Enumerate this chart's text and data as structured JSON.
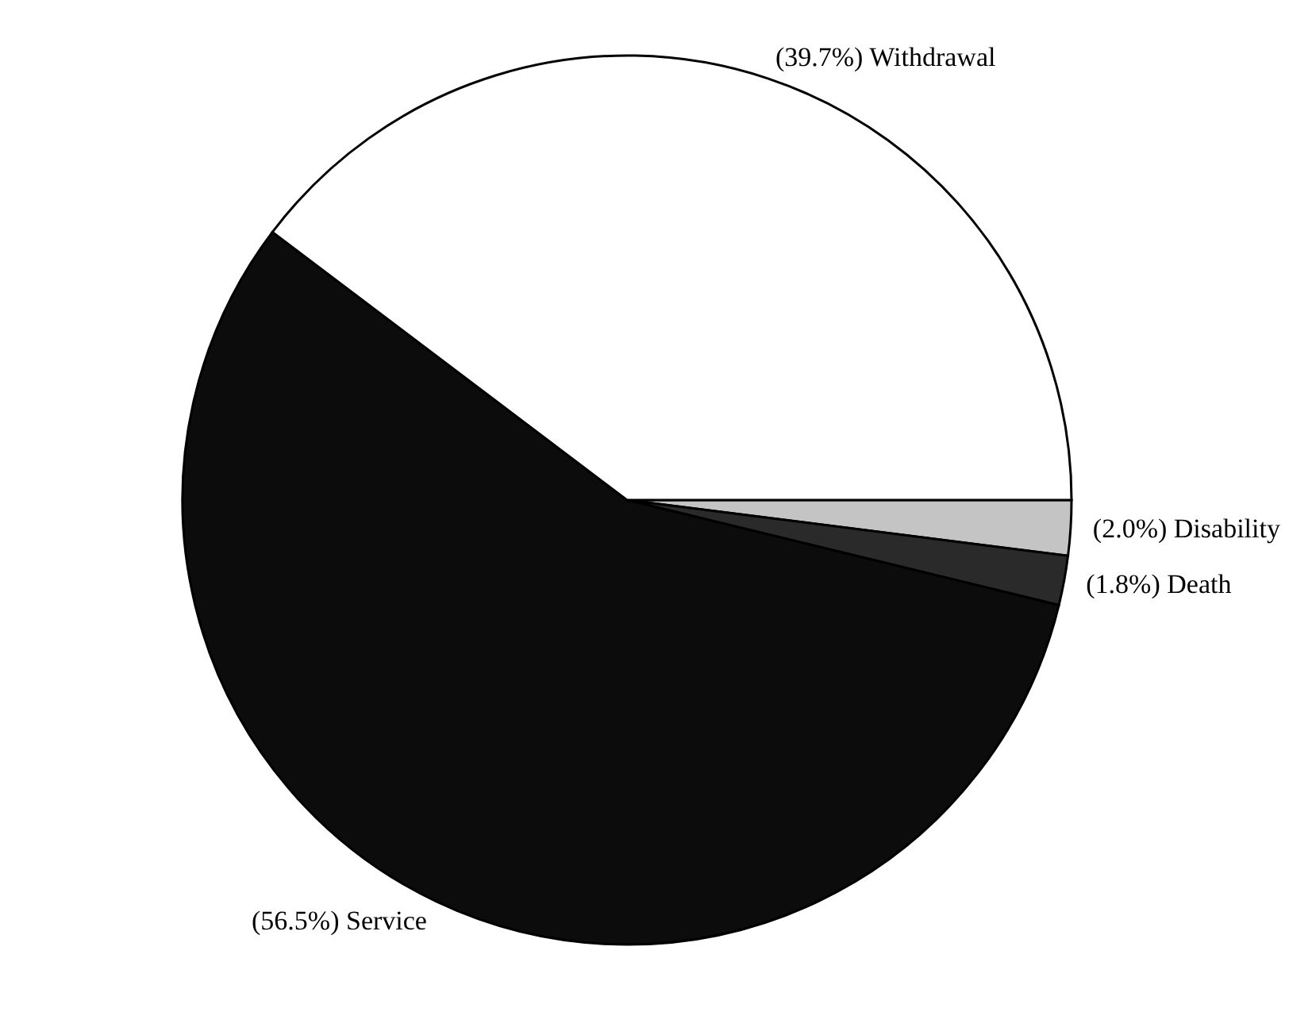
{
  "chart_data": {
    "type": "pie",
    "categories": [
      "Disability",
      "Death",
      "Service",
      "Withdrawal"
    ],
    "values": [
      2.0,
      1.8,
      56.5,
      39.7
    ],
    "value_labels": [
      "(2.0%)",
      "(1.8%)",
      "(56.5%)",
      "(39.7%)"
    ],
    "colors": [
      "#c4c4c4",
      "#2a2a2a",
      "#0c0c0c",
      "#ffffff"
    ]
  }
}
